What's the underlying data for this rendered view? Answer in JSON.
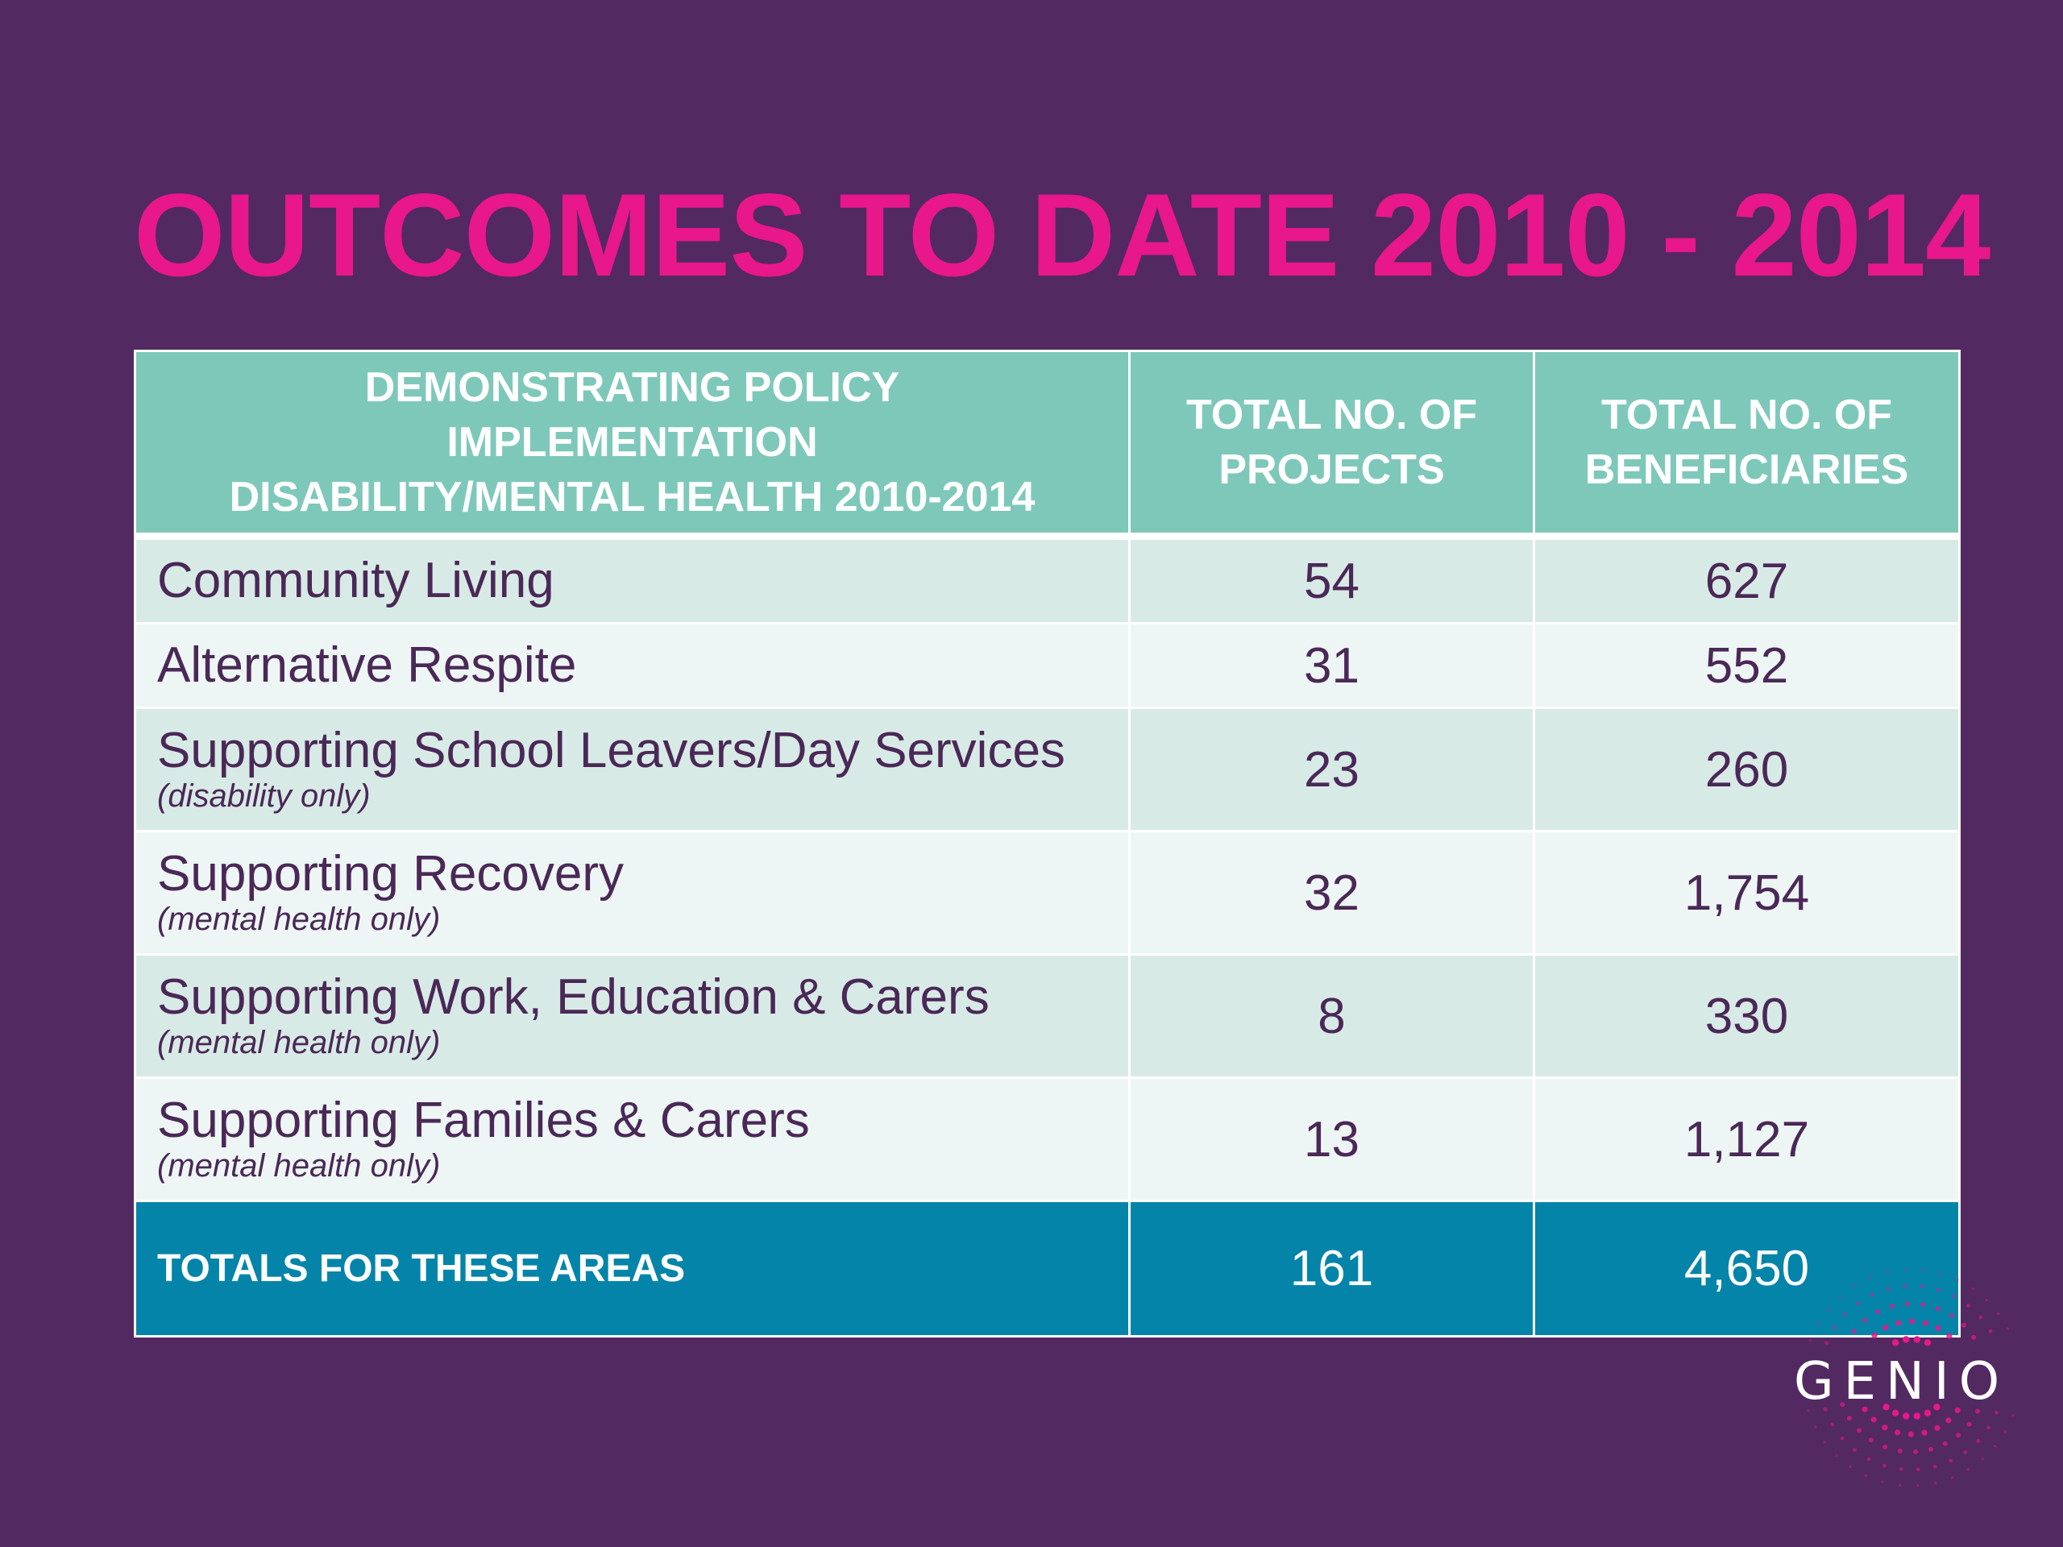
{
  "title": "OUTCOMES TO DATE 2010 - 2014",
  "table": {
    "headers": [
      [
        "DEMONSTRATING POLICY",
        "IMPLEMENTATION",
        "DISABILITY/MENTAL HEALTH 2010-2014"
      ],
      [
        "TOTAL NO. OF",
        "PROJECTS"
      ],
      [
        "TOTAL NO. OF",
        "BENEFICIARIES"
      ]
    ],
    "rows": [
      {
        "area": "Community Living",
        "note": "",
        "projects": "54",
        "beneficiaries": "627"
      },
      {
        "area": "Alternative Respite",
        "note": "",
        "projects": "31",
        "beneficiaries": "552"
      },
      {
        "area": "Supporting School Leavers/Day Services",
        "note": "(disability only)",
        "projects": "23",
        "beneficiaries": "260"
      },
      {
        "area": "Supporting Recovery",
        "note": "(mental health only)",
        "projects": "32",
        "beneficiaries": "1,754"
      },
      {
        "area": "Supporting Work, Education & Carers",
        "note": "(mental health only)",
        "projects": "8",
        "beneficiaries": "330"
      },
      {
        "area": "Supporting Families & Carers",
        "note": "(mental health only)",
        "projects": "13",
        "beneficiaries": "1,127"
      }
    ],
    "totals": {
      "label": "TOTALS FOR THESE AREAS",
      "projects": "161",
      "beneficiaries": "4,650"
    }
  },
  "logo": {
    "text": "GENIO"
  },
  "colors": {
    "background": "#522960",
    "title": "#E8178A",
    "header": "#7EC8BA",
    "row_odd": "#D8EAE6",
    "row_even": "#EDF6F4",
    "totals": "#0484A9",
    "body_text": "#4A2857"
  }
}
